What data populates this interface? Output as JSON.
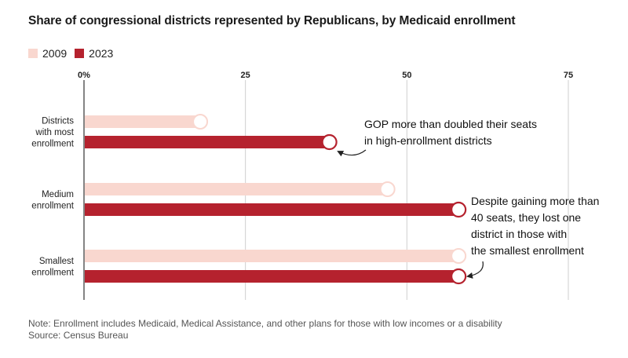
{
  "chart_data": {
    "type": "bar",
    "orientation": "horizontal",
    "title": "Share of congressional districts represented by Republicans, by Medicaid enrollment",
    "categories": [
      [
        "Districts",
        "with most",
        "enrollment"
      ],
      [
        "Medium",
        "enrollment"
      ],
      [
        "Smallest",
        "enrollment"
      ]
    ],
    "series": [
      {
        "name": "2009",
        "color": "#f9d7cf",
        "values": [
          18,
          47,
          58
        ]
      },
      {
        "name": "2023",
        "color": "#b5222e",
        "values": [
          38,
          58,
          58
        ]
      }
    ],
    "xticks": [
      0,
      25,
      50,
      75
    ],
    "xtick_labels": [
      "0%",
      "25",
      "50",
      "75"
    ],
    "xlim": [
      0,
      77
    ],
    "grid": true,
    "legend": "top-left",
    "annotations": [
      {
        "lines": [
          "GOP more than doubled their seats",
          "in high-enrollment districts"
        ],
        "points_to": "Districts with most enrollment 2023"
      },
      {
        "lines": [
          "Despite gaining more than",
          "40 seats, they lost one",
          "district in those with",
          "the smallest enrollment"
        ],
        "points_to": "Smallest enrollment 2023"
      }
    ]
  },
  "notes": {
    "note": "Note: Enrollment includes Medicaid, Medical Assistance, and other plans for those with low incomes or a disability",
    "source": "Source: Census Bureau"
  }
}
